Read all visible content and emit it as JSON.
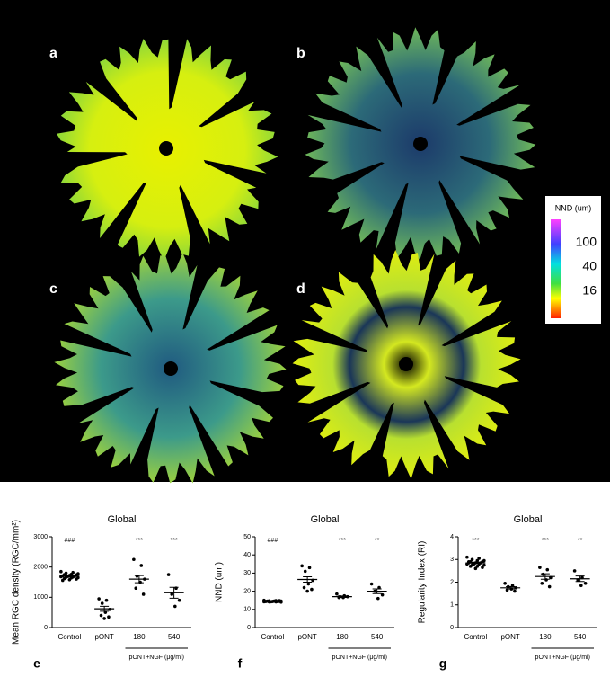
{
  "figure": {
    "images": [
      {
        "label": "a"
      },
      {
        "label": "b"
      },
      {
        "label": "c"
      },
      {
        "label": "d"
      }
    ],
    "colorbar": {
      "title": "NND (um)",
      "ticks": [
        100,
        40,
        16
      ]
    }
  },
  "chart_data": [
    {
      "type": "dotplot",
      "panel": "e",
      "title": "Global",
      "ylabel": "Mean RGC density (RGC/mm²)",
      "categories": [
        "Control",
        "pONT",
        "180",
        "540"
      ],
      "group_label": "pONT+NGF (μg/ml)",
      "annotations": [
        "###",
        null,
        "***",
        "***"
      ],
      "values": [
        [
          1850,
          1820,
          1800,
          1780,
          1760,
          1750,
          1740,
          1720,
          1710,
          1700,
          1690,
          1680,
          1670,
          1660,
          1650,
          1640,
          1620,
          1600,
          1580,
          1560
        ],
        [
          950,
          900,
          800,
          600,
          500,
          400,
          350,
          300
        ],
        [
          2250,
          2050,
          1700,
          1600,
          1500,
          1300,
          1100
        ],
        [
          1750,
          1300,
          1100,
          900,
          700
        ]
      ],
      "means": [
        1700,
        620,
        1600,
        1150
      ],
      "sems": [
        30,
        80,
        120,
        180
      ],
      "ylim": [
        0,
        3000
      ],
      "yticks": [
        0,
        1000,
        2000,
        3000
      ],
      "color": "#000000"
    },
    {
      "type": "dotplot",
      "panel": "f",
      "title": "Global",
      "ylabel": "NND (um)",
      "categories": [
        "Control",
        "pONT",
        "180",
        "540"
      ],
      "group_label": "pONT+NGF (μg/ml)",
      "annotations": [
        "###",
        null,
        "***",
        "**"
      ],
      "values": [
        [
          15,
          14.8,
          14.7,
          14.6,
          14.5,
          14.5,
          14.4,
          14.4,
          14.3,
          14.3,
          14.2,
          14.2,
          14.1,
          14.1,
          14,
          14.6,
          14.5,
          14.8,
          14.3,
          14.4
        ],
        [
          34,
          33,
          31,
          26,
          24,
          22,
          21,
          20
        ],
        [
          18.5,
          17.5,
          17,
          17,
          16.5,
          16.5
        ],
        [
          24,
          22,
          20,
          18,
          16
        ]
      ],
      "means": [
        14.5,
        26.5,
        17,
        20
      ],
      "sems": [
        0.2,
        1.5,
        0.4,
        1.3
      ],
      "ylim": [
        0,
        50
      ],
      "yticks": [
        0,
        10,
        20,
        30,
        40,
        50
      ],
      "color": "#000000"
    },
    {
      "type": "dotplot",
      "panel": "g",
      "title": "Global",
      "ylabel": "Regularity Index (RI)",
      "categories": [
        "Control",
        "pONT",
        "180",
        "540"
      ],
      "group_label": "pONT+NGF (μg/ml)",
      "annotations": [
        "***",
        null,
        "***",
        "**"
      ],
      "values": [
        [
          3.1,
          3.05,
          3,
          2.95,
          2.95,
          2.9,
          2.9,
          2.85,
          2.85,
          2.85,
          2.8,
          2.8,
          2.8,
          2.75,
          2.75,
          2.7,
          2.7,
          2.65,
          2.6,
          2.9
        ],
        [
          1.95,
          1.85,
          1.8,
          1.75,
          1.7,
          1.65,
          1.6
        ],
        [
          2.65,
          2.55,
          2.35,
          2.2,
          2.1,
          1.95,
          1.8
        ],
        [
          2.5,
          2.2,
          2.1,
          1.95,
          1.85
        ]
      ],
      "means": [
        2.85,
        1.75,
        2.25,
        2.15
      ],
      "sems": [
        0.03,
        0.05,
        0.12,
        0.12
      ],
      "ylim": [
        0,
        4
      ],
      "yticks": [
        0,
        1,
        2,
        3,
        4
      ],
      "color": "#000000"
    }
  ]
}
